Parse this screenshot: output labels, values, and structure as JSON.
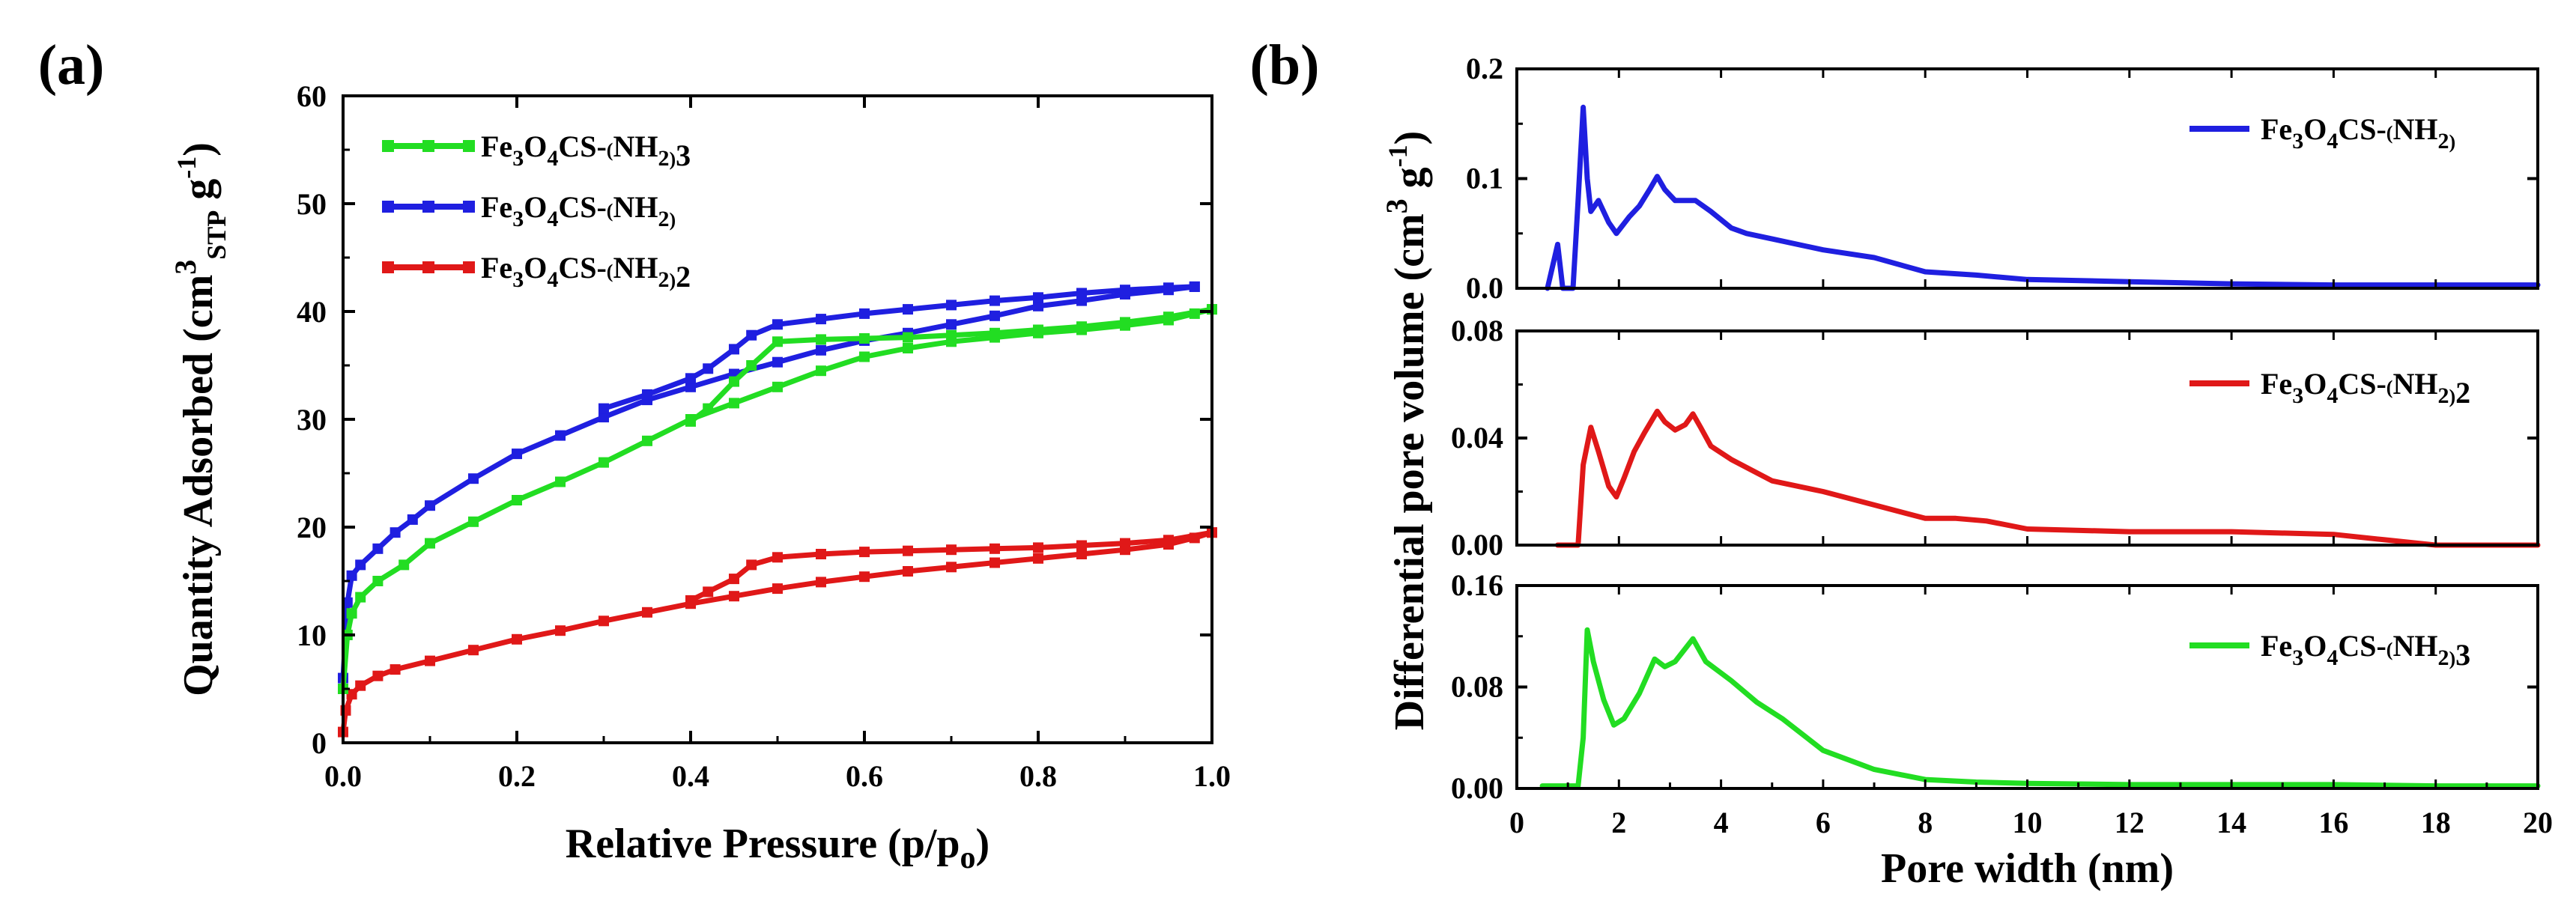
{
  "chart_data": [
    {
      "panel": "(a)",
      "type": "line",
      "xlabel": "Relative Pressure (p/p",
      "xlabel_sub": "o",
      "xlabel_end": ")",
      "ylabel": "Quantity Adsorbed (cm",
      "ylabel_sup": "3",
      "ylabel_sub": "STP",
      "ylabel_g": " g",
      "ylabel_sup2": "-1",
      "ylabel_end": ")",
      "xlim": [
        0,
        1.0
      ],
      "ylim": [
        0,
        60
      ],
      "xticks": [
        "0.0",
        "0.2",
        "0.4",
        "0.6",
        "0.8",
        "1.0"
      ],
      "yticks": [
        "0",
        "10",
        "20",
        "30",
        "40",
        "50",
        "60"
      ],
      "legend_position": "top-left",
      "series": [
        {
          "name": "Fe3O4CS-(NH2)3",
          "color": "#22dd22",
          "adsorption": [
            [
              0,
              5
            ],
            [
              0.005,
              10
            ],
            [
              0.01,
              12
            ],
            [
              0.02,
              13.5
            ],
            [
              0.04,
              15
            ],
            [
              0.07,
              16.5
            ],
            [
              0.1,
              18.5
            ],
            [
              0.15,
              20.5
            ],
            [
              0.2,
              22.5
            ],
            [
              0.25,
              24.2
            ],
            [
              0.3,
              26
            ],
            [
              0.35,
              28
            ],
            [
              0.4,
              30
            ],
            [
              0.45,
              31.5
            ],
            [
              0.5,
              33
            ],
            [
              0.55,
              34.5
            ],
            [
              0.6,
              35.8
            ],
            [
              0.65,
              36.6
            ],
            [
              0.7,
              37.2
            ],
            [
              0.75,
              37.6
            ],
            [
              0.8,
              38
            ],
            [
              0.85,
              38.3
            ],
            [
              0.9,
              38.7
            ],
            [
              0.95,
              39.2
            ],
            [
              0.98,
              39.8
            ],
            [
              1.0,
              40.2
            ]
          ],
          "desorption": [
            [
              1.0,
              40.2
            ],
            [
              0.95,
              39.5
            ],
            [
              0.9,
              39
            ],
            [
              0.85,
              38.6
            ],
            [
              0.8,
              38.3
            ],
            [
              0.75,
              38
            ],
            [
              0.7,
              37.8
            ],
            [
              0.65,
              37.6
            ],
            [
              0.6,
              37.5
            ],
            [
              0.55,
              37.4
            ],
            [
              0.5,
              37.2
            ],
            [
              0.47,
              35
            ],
            [
              0.45,
              33.5
            ],
            [
              0.42,
              31
            ],
            [
              0.4,
              29.8
            ]
          ]
        },
        {
          "name": "Fe3O4CS-(NH2)",
          "color": "#1f1fe0",
          "adsorption": [
            [
              0,
              6
            ],
            [
              0.005,
              13
            ],
            [
              0.01,
              15.5
            ],
            [
              0.02,
              16.5
            ],
            [
              0.04,
              18
            ],
            [
              0.06,
              19.5
            ],
            [
              0.08,
              20.7
            ],
            [
              0.1,
              22
            ],
            [
              0.15,
              24.5
            ],
            [
              0.2,
              26.8
            ],
            [
              0.25,
              28.5
            ],
            [
              0.3,
              30.2
            ],
            [
              0.35,
              31.8
            ],
            [
              0.4,
              33
            ],
            [
              0.45,
              34.2
            ],
            [
              0.5,
              35.3
            ],
            [
              0.55,
              36.4
            ],
            [
              0.6,
              37.3
            ],
            [
              0.65,
              38
            ],
            [
              0.7,
              38.8
            ],
            [
              0.75,
              39.6
            ],
            [
              0.8,
              40.5
            ],
            [
              0.85,
              41
            ],
            [
              0.9,
              41.6
            ],
            [
              0.95,
              42
            ],
            [
              0.98,
              42.3
            ]
          ],
          "desorption": [
            [
              0.98,
              42.3
            ],
            [
              0.95,
              42.2
            ],
            [
              0.9,
              42
            ],
            [
              0.85,
              41.7
            ],
            [
              0.8,
              41.3
            ],
            [
              0.75,
              41
            ],
            [
              0.7,
              40.6
            ],
            [
              0.65,
              40.2
            ],
            [
              0.6,
              39.8
            ],
            [
              0.55,
              39.3
            ],
            [
              0.5,
              38.8
            ],
            [
              0.47,
              37.8
            ],
            [
              0.45,
              36.5
            ],
            [
              0.42,
              34.7
            ],
            [
              0.4,
              33.8
            ],
            [
              0.35,
              32.3
            ],
            [
              0.3,
              31
            ]
          ]
        },
        {
          "name": "Fe3O4CS-(NH2)2",
          "color": "#e01818",
          "adsorption": [
            [
              0,
              1
            ],
            [
              0.003,
              3
            ],
            [
              0.01,
              4.5
            ],
            [
              0.02,
              5.3
            ],
            [
              0.04,
              6.2
            ],
            [
              0.06,
              6.8
            ],
            [
              0.1,
              7.6
            ],
            [
              0.15,
              8.6
            ],
            [
              0.2,
              9.6
            ],
            [
              0.25,
              10.4
            ],
            [
              0.3,
              11.3
            ],
            [
              0.35,
              12.1
            ],
            [
              0.4,
              12.9
            ],
            [
              0.45,
              13.6
            ],
            [
              0.5,
              14.3
            ],
            [
              0.55,
              14.9
            ],
            [
              0.6,
              15.4
            ],
            [
              0.65,
              15.9
            ],
            [
              0.7,
              16.3
            ],
            [
              0.75,
              16.7
            ],
            [
              0.8,
              17.1
            ],
            [
              0.85,
              17.5
            ],
            [
              0.9,
              17.9
            ],
            [
              0.95,
              18.4
            ],
            [
              0.98,
              19
            ],
            [
              1.0,
              19.5
            ]
          ],
          "desorption": [
            [
              1.0,
              19.5
            ],
            [
              0.95,
              18.8
            ],
            [
              0.9,
              18.5
            ],
            [
              0.85,
              18.3
            ],
            [
              0.8,
              18.1
            ],
            [
              0.75,
              18
            ],
            [
              0.7,
              17.9
            ],
            [
              0.65,
              17.8
            ],
            [
              0.6,
              17.7
            ],
            [
              0.55,
              17.5
            ],
            [
              0.5,
              17.2
            ],
            [
              0.47,
              16.5
            ],
            [
              0.45,
              15.2
            ],
            [
              0.42,
              14
            ],
            [
              0.4,
              13.2
            ]
          ]
        }
      ]
    },
    {
      "panel": "(b)",
      "type": "line",
      "xlabel": "Pore width (nm)",
      "ylabel": "Differential pore volume (cm",
      "ylabel_sup": "3",
      "ylabel_g": " g",
      "ylabel_sup2": "-1",
      "ylabel_end": ")",
      "xlim": [
        0,
        20
      ],
      "xticks": [
        "0",
        "2",
        "4",
        "6",
        "8",
        "10",
        "12",
        "14",
        "16",
        "18",
        "20"
      ],
      "subplots": [
        {
          "name": "Fe3O4CS-(NH2)",
          "color": "#1f1fe0",
          "ylim": [
            0,
            0.2
          ],
          "yticks": [
            "0.0",
            "0.1",
            "0.2"
          ],
          "ytick_values": [
            0,
            0.1,
            0.2
          ],
          "legend_position": "top-right",
          "points": [
            [
              0.6,
              0
            ],
            [
              0.8,
              0.04
            ],
            [
              0.85,
              0.02
            ],
            [
              0.9,
              0
            ],
            [
              1.1,
              0
            ],
            [
              1.2,
              0.08
            ],
            [
              1.3,
              0.165
            ],
            [
              1.38,
              0.1
            ],
            [
              1.45,
              0.07
            ],
            [
              1.6,
              0.08
            ],
            [
              1.8,
              0.06
            ],
            [
              1.95,
              0.05
            ],
            [
              2.2,
              0.065
            ],
            [
              2.4,
              0.075
            ],
            [
              2.6,
              0.09
            ],
            [
              2.75,
              0.102
            ],
            [
              2.9,
              0.09
            ],
            [
              3.1,
              0.08
            ],
            [
              3.5,
              0.08
            ],
            [
              3.8,
              0.07
            ],
            [
              4.2,
              0.055
            ],
            [
              4.5,
              0.05
            ],
            [
              5,
              0.045
            ],
            [
              6,
              0.035
            ],
            [
              7,
              0.028
            ],
            [
              8,
              0.015
            ],
            [
              9,
              0.012
            ],
            [
              10,
              0.008
            ],
            [
              12,
              0.006
            ],
            [
              14,
              0.004
            ],
            [
              16,
              0.003
            ],
            [
              18,
              0.003
            ],
            [
              20,
              0.003
            ]
          ]
        },
        {
          "name": "Fe3O4CS-(NH2)2",
          "color": "#e01818",
          "ylim": [
            0,
            0.08
          ],
          "yticks": [
            "0.00",
            "0.04",
            "0.08"
          ],
          "ytick_values": [
            0,
            0.04,
            0.08
          ],
          "legend_position": "top-right",
          "points": [
            [
              0.8,
              0
            ],
            [
              1.2,
              0
            ],
            [
              1.3,
              0.03
            ],
            [
              1.45,
              0.044
            ],
            [
              1.6,
              0.035
            ],
            [
              1.8,
              0.022
            ],
            [
              1.95,
              0.018
            ],
            [
              2.1,
              0.025
            ],
            [
              2.3,
              0.035
            ],
            [
              2.5,
              0.042
            ],
            [
              2.75,
              0.05
            ],
            [
              2.9,
              0.046
            ],
            [
              3.1,
              0.043
            ],
            [
              3.3,
              0.045
            ],
            [
              3.45,
              0.049
            ],
            [
              3.6,
              0.044
            ],
            [
              3.8,
              0.037
            ],
            [
              4.2,
              0.032
            ],
            [
              5,
              0.024
            ],
            [
              6,
              0.02
            ],
            [
              7,
              0.015
            ],
            [
              8,
              0.01
            ],
            [
              8.6,
              0.01
            ],
            [
              9.2,
              0.009
            ],
            [
              10,
              0.006
            ],
            [
              12,
              0.005
            ],
            [
              14,
              0.005
            ],
            [
              16,
              0.004
            ],
            [
              17,
              0.002
            ],
            [
              18,
              0
            ],
            [
              20,
              0
            ]
          ]
        },
        {
          "name": "Fe3O4CS-(NH2)3",
          "color": "#22dd22",
          "ylim": [
            0,
            0.16
          ],
          "yticks": [
            "0.00",
            "0.08",
            "0.16"
          ],
          "ytick_values": [
            0,
            0.08,
            0.16
          ],
          "legend_position": "top-right",
          "points": [
            [
              0.5,
              0.002
            ],
            [
              1.2,
              0.002
            ],
            [
              1.3,
              0.04
            ],
            [
              1.38,
              0.125
            ],
            [
              1.5,
              0.1
            ],
            [
              1.7,
              0.07
            ],
            [
              1.9,
              0.05
            ],
            [
              2.1,
              0.055
            ],
            [
              2.4,
              0.075
            ],
            [
              2.7,
              0.102
            ],
            [
              2.9,
              0.096
            ],
            [
              3.1,
              0.1
            ],
            [
              3.45,
              0.118
            ],
            [
              3.7,
              0.1
            ],
            [
              4.2,
              0.085
            ],
            [
              4.7,
              0.068
            ],
            [
              5.2,
              0.055
            ],
            [
              6,
              0.03
            ],
            [
              7,
              0.015
            ],
            [
              8,
              0.007
            ],
            [
              9,
              0.005
            ],
            [
              10,
              0.004
            ],
            [
              12,
              0.003
            ],
            [
              14,
              0.003
            ],
            [
              16,
              0.003
            ],
            [
              18,
              0.002
            ],
            [
              20,
              0.002
            ]
          ]
        }
      ]
    }
  ],
  "legend_labels": {
    "nh2_3": [
      "Fe",
      "3",
      "O",
      "4",
      "CS-",
      "(",
      "NH",
      "2",
      ")",
      "3"
    ],
    "nh2": [
      "Fe",
      "3",
      "O",
      "4",
      "CS-",
      "(",
      "NH",
      "2",
      ")",
      ""
    ],
    "nh2_2": [
      "Fe",
      "3",
      "O",
      "4",
      "CS-",
      "(",
      "NH",
      "2",
      ")",
      "2"
    ]
  }
}
